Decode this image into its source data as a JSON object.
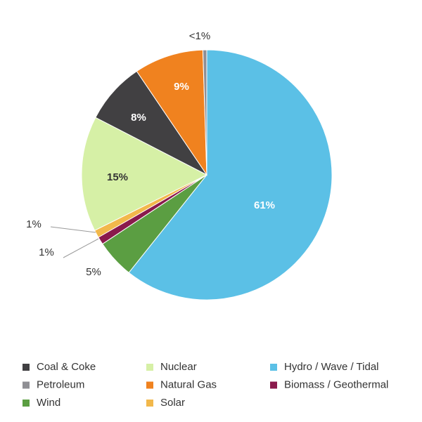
{
  "chart_data": {
    "type": "pie",
    "categories": [
      "Hydro / Wave / Tidal",
      "Wind",
      "Biomass / Geothermal",
      "Solar",
      "Nuclear",
      "Coal & Coke",
      "Natural Gas",
      "Petroleum"
    ],
    "values": [
      61,
      5,
      1,
      1,
      15,
      8,
      9,
      0.5
    ],
    "value_labels": [
      "61%",
      "5%",
      "1%",
      "1%",
      "15%",
      "8%",
      "9%",
      "<1%"
    ],
    "colors": [
      "#5bc0e6",
      "#5b9e42",
      "#8a1a4c",
      "#f2b84b",
      "#d6f0a6",
      "#414042",
      "#f0821f",
      "#8f8f94"
    ],
    "legend": true
  }
}
